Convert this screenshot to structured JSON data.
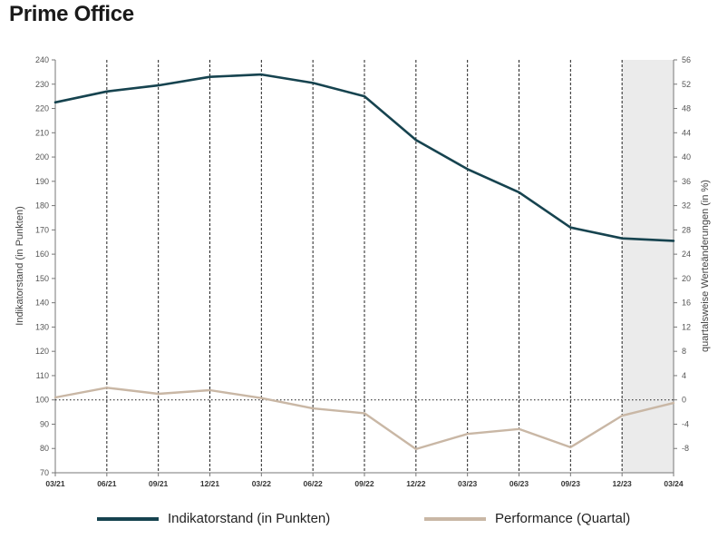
{
  "title": "Prime Office",
  "chart_data": {
    "type": "line",
    "title": "Prime Office",
    "categories": [
      "03/21",
      "06/21",
      "09/21",
      "12/21",
      "03/22",
      "06/22",
      "09/22",
      "12/22",
      "03/23",
      "06/23",
      "09/23",
      "12/23",
      "03/24"
    ],
    "y_left": {
      "label": "Indikatorstand (in Punkten)",
      "range": [
        70,
        240
      ],
      "ticks": [
        70,
        80,
        90,
        100,
        110,
        120,
        130,
        140,
        150,
        160,
        170,
        180,
        190,
        200,
        210,
        220,
        230,
        240
      ]
    },
    "y_right": {
      "label": "quartalsweise Werteänderungen (in %)",
      "range": [
        -12,
        56
      ],
      "ticks": [
        -8,
        -4,
        0,
        4,
        8,
        12,
        16,
        20,
        24,
        28,
        32,
        36,
        40,
        44,
        48,
        52,
        56
      ]
    },
    "shaded_region": {
      "from": "12/23",
      "to": "03/24"
    },
    "reference_line": {
      "axis": "right",
      "value": 0,
      "style": "dotted"
    },
    "grid": "vertical dashed at each category",
    "legend_position": "bottom",
    "series": [
      {
        "name": "Indikatorstand (in Punkten)",
        "axis": "left",
        "color": "#16434f",
        "values": [
          222.5,
          227,
          229.5,
          233,
          234,
          230.5,
          225,
          207,
          195,
          185.5,
          171,
          166.5,
          165.5
        ]
      },
      {
        "name": "Performance (Quartal)",
        "axis": "right",
        "color": "#c9b7a5",
        "values": [
          0.4,
          2.0,
          1.0,
          1.6,
          0.3,
          -1.4,
          -2.2,
          -8.1,
          -5.6,
          -4.8,
          -7.8,
          -2.6,
          -0.5
        ]
      }
    ]
  }
}
